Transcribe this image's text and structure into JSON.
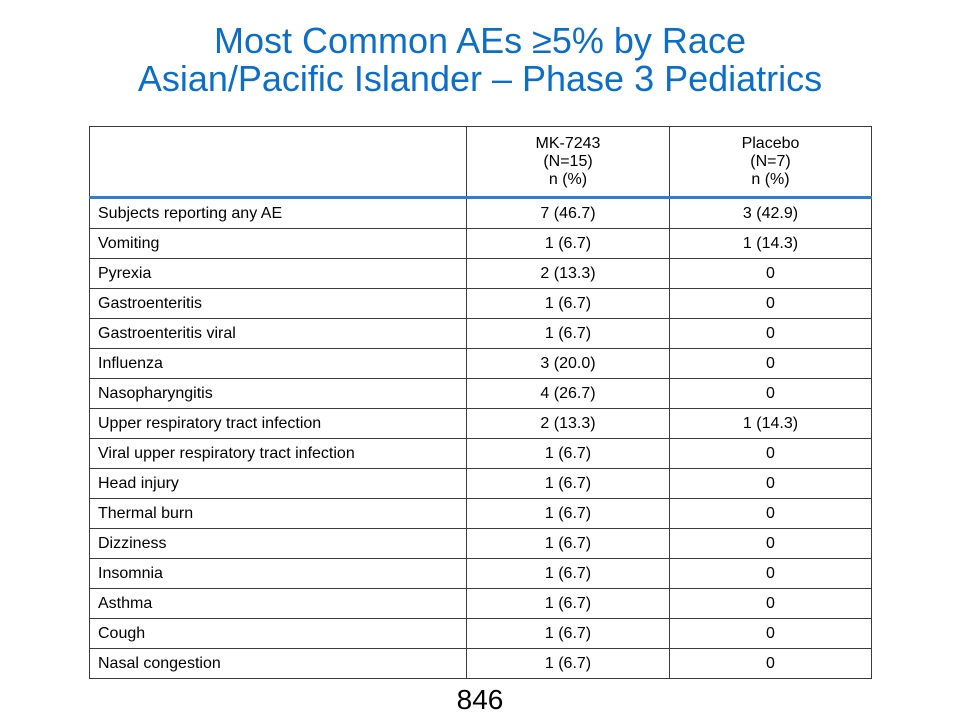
{
  "title": {
    "line1": "Most Common AEs ≥5% by Race",
    "line2": "Asian/Pacific Islander – Phase 3 Pediatrics"
  },
  "table": {
    "header": {
      "col0": "",
      "mk": {
        "line1": "MK-7243",
        "line2": "(N=15)",
        "line3": "n (%)"
      },
      "placebo": {
        "line1": "Placebo",
        "line2": "(N=7)",
        "line3": "n (%)"
      }
    },
    "rows": [
      {
        "term": "Subjects reporting any AE",
        "mk": "7 (46.7)",
        "placebo": "3 (42.9)"
      },
      {
        "term": "Vomiting",
        "mk": "1 (6.7)",
        "placebo": "1 (14.3)"
      },
      {
        "term": "Pyrexia",
        "mk": "2 (13.3)",
        "placebo": "0"
      },
      {
        "term": "Gastroenteritis",
        "mk": "1 (6.7)",
        "placebo": "0"
      },
      {
        "term": "Gastroenteritis viral",
        "mk": "1 (6.7)",
        "placebo": "0"
      },
      {
        "term": "Influenza",
        "mk": "3 (20.0)",
        "placebo": "0"
      },
      {
        "term": "Nasopharyngitis",
        "mk": "4 (26.7)",
        "placebo": "0"
      },
      {
        "term": "Upper respiratory tract infection",
        "mk": "2 (13.3)",
        "placebo": "1 (14.3)"
      },
      {
        "term": "Viral upper respiratory tract infection",
        "mk": "1 (6.7)",
        "placebo": "0"
      },
      {
        "term": "Head injury",
        "mk": "1 (6.7)",
        "placebo": "0"
      },
      {
        "term": "Thermal burn",
        "mk": "1 (6.7)",
        "placebo": "0"
      },
      {
        "term": "Dizziness",
        "mk": "1 (6.7)",
        "placebo": "0"
      },
      {
        "term": "Insomnia",
        "mk": "1 (6.7)",
        "placebo": "0"
      },
      {
        "term": "Asthma",
        "mk": "1 (6.7)",
        "placebo": "0"
      },
      {
        "term": "Cough",
        "mk": "1 (6.7)",
        "placebo": "0"
      },
      {
        "term": "Nasal congestion",
        "mk": "1 (6.7)",
        "placebo": "0"
      }
    ]
  },
  "page_number": "846",
  "colors": {
    "title": "#0b6ec9",
    "header_rule": "#2f7fd0",
    "border": "#3b3b3b",
    "text": "#000000",
    "background": "#ffffff"
  }
}
